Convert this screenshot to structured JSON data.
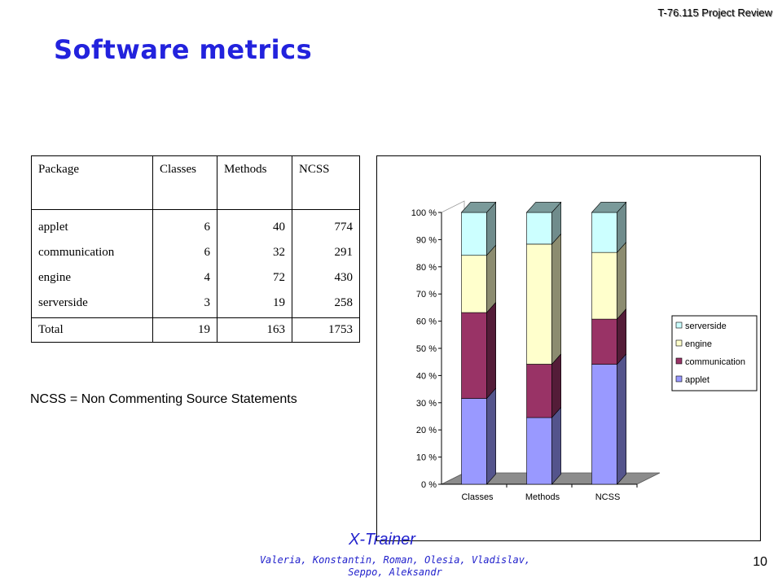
{
  "header": {
    "project_review": "T-76.115 Project Review"
  },
  "title": "Software metrics",
  "table": {
    "headers": [
      "Package",
      "Classes",
      "Methods",
      "NCSS"
    ],
    "rows": [
      [
        "applet",
        "6",
        "40",
        "774"
      ],
      [
        "communication",
        "6",
        "32",
        "291"
      ],
      [
        "engine",
        "4",
        "72",
        "430"
      ],
      [
        "serverside",
        "3",
        "19",
        "258"
      ]
    ],
    "total": [
      "Total",
      "19",
      "163",
      "1753"
    ]
  },
  "footnote": "NCSS = Non Commenting Source Statements",
  "chart_data": {
    "type": "bar",
    "stacked": "percent",
    "categories": [
      "Classes",
      "Methods",
      "NCSS"
    ],
    "series": [
      {
        "name": "applet",
        "values": [
          6,
          40,
          774
        ],
        "color": "#9999ff"
      },
      {
        "name": "communication",
        "values": [
          6,
          32,
          291
        ],
        "color": "#993366"
      },
      {
        "name": "engine",
        "values": [
          4,
          72,
          430
        ],
        "color": "#ffffcc"
      },
      {
        "name": "serverside",
        "values": [
          3,
          19,
          258
        ],
        "color": "#ccffff"
      }
    ],
    "yticks": [
      "0 %",
      "10 %",
      "20 %",
      "30 %",
      "40 %",
      "50 %",
      "60 %",
      "70 %",
      "80 %",
      "90 %",
      "100 %"
    ],
    "ylim": [
      0,
      100
    ],
    "legend_position": "right",
    "grid": false
  },
  "footer": {
    "team": "X-Trainer",
    "members": "Valeria, Konstantin, Roman, Olesia, Vladislav, Seppo, Aleksandr",
    "page": "10"
  }
}
